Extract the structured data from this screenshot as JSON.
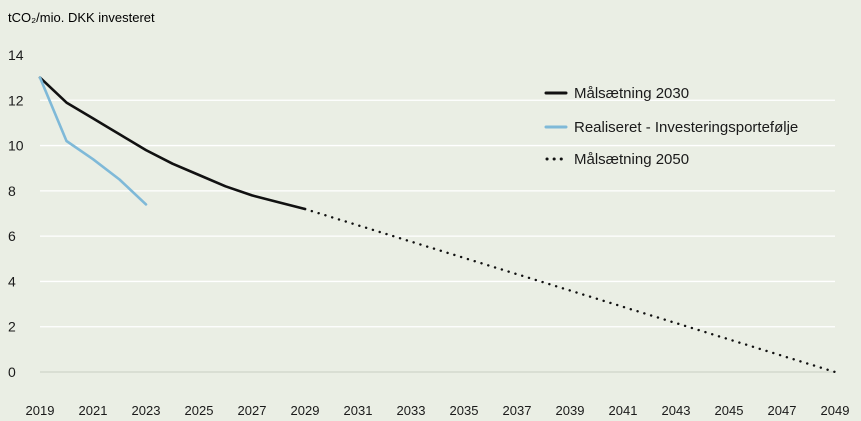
{
  "chart_data": {
    "type": "line",
    "title": "",
    "ylabel": "tCO₂/mio. DKK investeret",
    "xlabel": "",
    "ylim": [
      0,
      14
    ],
    "xlim": [
      2019,
      2049
    ],
    "yticks": [
      0,
      2,
      4,
      6,
      8,
      10,
      12,
      14
    ],
    "xticks": [
      2019,
      2021,
      2023,
      2025,
      2027,
      2029,
      2031,
      2033,
      2035,
      2037,
      2039,
      2041,
      2043,
      2045,
      2047,
      2049
    ],
    "grid": "horizontal",
    "legend_position": "right",
    "series": [
      {
        "name": "Målsætning 2030",
        "color": "#111111",
        "style": "solid",
        "x": [
          2019,
          2020,
          2021,
          2022,
          2023,
          2024,
          2025,
          2026,
          2027,
          2028,
          2029
        ],
        "y": [
          13.0,
          11.9,
          11.2,
          10.5,
          9.8,
          9.2,
          8.7,
          8.2,
          7.8,
          7.5,
          7.2
        ]
      },
      {
        "name": "Realiseret - Investeringsportefølje",
        "color": "#7fb9d8",
        "style": "solid",
        "x": [
          2019,
          2020,
          2021,
          2022,
          2023
        ],
        "y": [
          13.0,
          10.2,
          9.4,
          8.5,
          7.4
        ]
      },
      {
        "name": "Målsætning 2050",
        "color": "#111111",
        "style": "dotted",
        "x": [
          2029,
          2049
        ],
        "y": [
          7.2,
          0
        ]
      }
    ]
  }
}
